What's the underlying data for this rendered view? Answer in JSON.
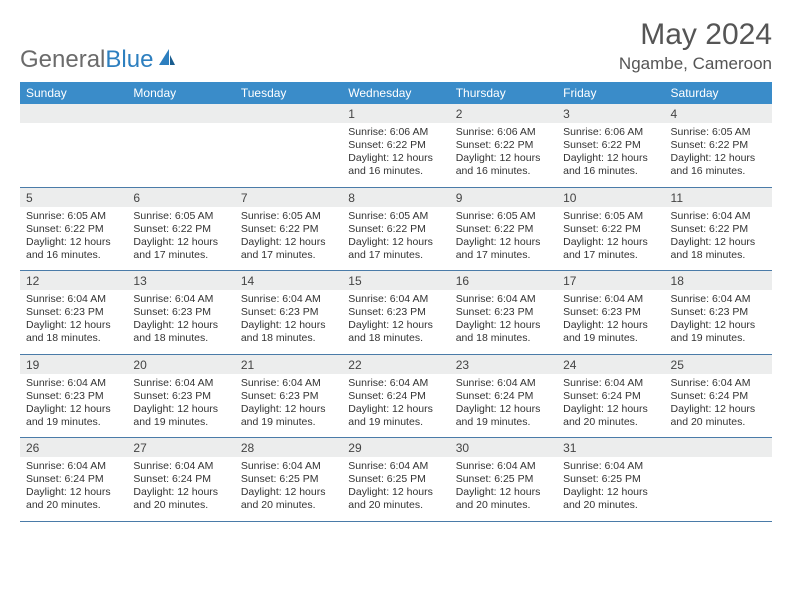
{
  "logo": {
    "text1": "General",
    "text2": "Blue"
  },
  "title": "May 2024",
  "location": "Ngambe, Cameroon",
  "colors": {
    "header_bg": "#3a8cc9",
    "header_text": "#ffffff",
    "daynum_bg": "#eceded",
    "row_border": "#4a7ba8",
    "logo_gray": "#6b6b6b",
    "logo_blue": "#2d7fbf"
  },
  "day_headers": [
    "Sunday",
    "Monday",
    "Tuesday",
    "Wednesday",
    "Thursday",
    "Friday",
    "Saturday"
  ],
  "weeks": [
    [
      {
        "n": "",
        "sr": "",
        "ss": "",
        "dl": ""
      },
      {
        "n": "",
        "sr": "",
        "ss": "",
        "dl": ""
      },
      {
        "n": "",
        "sr": "",
        "ss": "",
        "dl": ""
      },
      {
        "n": "1",
        "sr": "Sunrise: 6:06 AM",
        "ss": "Sunset: 6:22 PM",
        "dl": "Daylight: 12 hours and 16 minutes."
      },
      {
        "n": "2",
        "sr": "Sunrise: 6:06 AM",
        "ss": "Sunset: 6:22 PM",
        "dl": "Daylight: 12 hours and 16 minutes."
      },
      {
        "n": "3",
        "sr": "Sunrise: 6:06 AM",
        "ss": "Sunset: 6:22 PM",
        "dl": "Daylight: 12 hours and 16 minutes."
      },
      {
        "n": "4",
        "sr": "Sunrise: 6:05 AM",
        "ss": "Sunset: 6:22 PM",
        "dl": "Daylight: 12 hours and 16 minutes."
      }
    ],
    [
      {
        "n": "5",
        "sr": "Sunrise: 6:05 AM",
        "ss": "Sunset: 6:22 PM",
        "dl": "Daylight: 12 hours and 16 minutes."
      },
      {
        "n": "6",
        "sr": "Sunrise: 6:05 AM",
        "ss": "Sunset: 6:22 PM",
        "dl": "Daylight: 12 hours and 17 minutes."
      },
      {
        "n": "7",
        "sr": "Sunrise: 6:05 AM",
        "ss": "Sunset: 6:22 PM",
        "dl": "Daylight: 12 hours and 17 minutes."
      },
      {
        "n": "8",
        "sr": "Sunrise: 6:05 AM",
        "ss": "Sunset: 6:22 PM",
        "dl": "Daylight: 12 hours and 17 minutes."
      },
      {
        "n": "9",
        "sr": "Sunrise: 6:05 AM",
        "ss": "Sunset: 6:22 PM",
        "dl": "Daylight: 12 hours and 17 minutes."
      },
      {
        "n": "10",
        "sr": "Sunrise: 6:05 AM",
        "ss": "Sunset: 6:22 PM",
        "dl": "Daylight: 12 hours and 17 minutes."
      },
      {
        "n": "11",
        "sr": "Sunrise: 6:04 AM",
        "ss": "Sunset: 6:22 PM",
        "dl": "Daylight: 12 hours and 18 minutes."
      }
    ],
    [
      {
        "n": "12",
        "sr": "Sunrise: 6:04 AM",
        "ss": "Sunset: 6:23 PM",
        "dl": "Daylight: 12 hours and 18 minutes."
      },
      {
        "n": "13",
        "sr": "Sunrise: 6:04 AM",
        "ss": "Sunset: 6:23 PM",
        "dl": "Daylight: 12 hours and 18 minutes."
      },
      {
        "n": "14",
        "sr": "Sunrise: 6:04 AM",
        "ss": "Sunset: 6:23 PM",
        "dl": "Daylight: 12 hours and 18 minutes."
      },
      {
        "n": "15",
        "sr": "Sunrise: 6:04 AM",
        "ss": "Sunset: 6:23 PM",
        "dl": "Daylight: 12 hours and 18 minutes."
      },
      {
        "n": "16",
        "sr": "Sunrise: 6:04 AM",
        "ss": "Sunset: 6:23 PM",
        "dl": "Daylight: 12 hours and 18 minutes."
      },
      {
        "n": "17",
        "sr": "Sunrise: 6:04 AM",
        "ss": "Sunset: 6:23 PM",
        "dl": "Daylight: 12 hours and 19 minutes."
      },
      {
        "n": "18",
        "sr": "Sunrise: 6:04 AM",
        "ss": "Sunset: 6:23 PM",
        "dl": "Daylight: 12 hours and 19 minutes."
      }
    ],
    [
      {
        "n": "19",
        "sr": "Sunrise: 6:04 AM",
        "ss": "Sunset: 6:23 PM",
        "dl": "Daylight: 12 hours and 19 minutes."
      },
      {
        "n": "20",
        "sr": "Sunrise: 6:04 AM",
        "ss": "Sunset: 6:23 PM",
        "dl": "Daylight: 12 hours and 19 minutes."
      },
      {
        "n": "21",
        "sr": "Sunrise: 6:04 AM",
        "ss": "Sunset: 6:23 PM",
        "dl": "Daylight: 12 hours and 19 minutes."
      },
      {
        "n": "22",
        "sr": "Sunrise: 6:04 AM",
        "ss": "Sunset: 6:24 PM",
        "dl": "Daylight: 12 hours and 19 minutes."
      },
      {
        "n": "23",
        "sr": "Sunrise: 6:04 AM",
        "ss": "Sunset: 6:24 PM",
        "dl": "Daylight: 12 hours and 19 minutes."
      },
      {
        "n": "24",
        "sr": "Sunrise: 6:04 AM",
        "ss": "Sunset: 6:24 PM",
        "dl": "Daylight: 12 hours and 20 minutes."
      },
      {
        "n": "25",
        "sr": "Sunrise: 6:04 AM",
        "ss": "Sunset: 6:24 PM",
        "dl": "Daylight: 12 hours and 20 minutes."
      }
    ],
    [
      {
        "n": "26",
        "sr": "Sunrise: 6:04 AM",
        "ss": "Sunset: 6:24 PM",
        "dl": "Daylight: 12 hours and 20 minutes."
      },
      {
        "n": "27",
        "sr": "Sunrise: 6:04 AM",
        "ss": "Sunset: 6:24 PM",
        "dl": "Daylight: 12 hours and 20 minutes."
      },
      {
        "n": "28",
        "sr": "Sunrise: 6:04 AM",
        "ss": "Sunset: 6:25 PM",
        "dl": "Daylight: 12 hours and 20 minutes."
      },
      {
        "n": "29",
        "sr": "Sunrise: 6:04 AM",
        "ss": "Sunset: 6:25 PM",
        "dl": "Daylight: 12 hours and 20 minutes."
      },
      {
        "n": "30",
        "sr": "Sunrise: 6:04 AM",
        "ss": "Sunset: 6:25 PM",
        "dl": "Daylight: 12 hours and 20 minutes."
      },
      {
        "n": "31",
        "sr": "Sunrise: 6:04 AM",
        "ss": "Sunset: 6:25 PM",
        "dl": "Daylight: 12 hours and 20 minutes."
      },
      {
        "n": "",
        "sr": "",
        "ss": "",
        "dl": ""
      }
    ]
  ]
}
